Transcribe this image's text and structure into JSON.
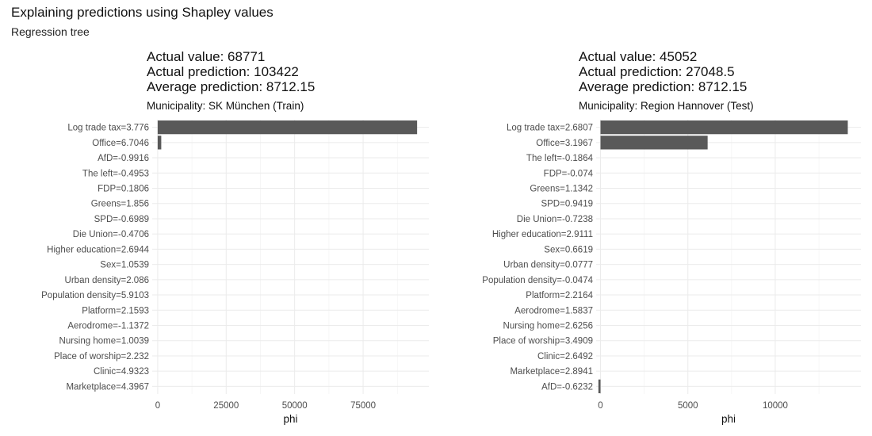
{
  "title": "Explaining predictions using Shapley values",
  "subtitle": "Regression tree",
  "chart_data": [
    {
      "type": "bar",
      "orientation": "horizontal",
      "stats": [
        "Actual value: 68771",
        "Actual prediction: 103422",
        "Average prediction: 8712.15"
      ],
      "facet_label": "Municipality: SK München (Train)",
      "xlabel": "phi",
      "ylabel": "",
      "xlim": [
        -2000,
        99000
      ],
      "xticks": [
        0,
        25000,
        50000,
        75000
      ],
      "xtick_labels": [
        "0",
        "25000",
        "50000",
        "75000"
      ],
      "bar_color": "#595959",
      "grid": true,
      "categories": [
        "Log trade tax=3.776",
        "Office=6.7046",
        "AfD=-0.9916",
        "The left=-0.4953",
        "FDP=0.1806",
        "Greens=1.856",
        "SPD=-0.6989",
        "Die Union=-0.4706",
        "Higher education=2.6944",
        "Sex=1.0539",
        "Urban density=2.086",
        "Population density=5.9103",
        "Platform=2.1593",
        "Aerodrome=-1.1372",
        "Nursing home=1.0039",
        "Place of worship=2.232",
        "Clinic=4.9323",
        "Marketplace=4.3967"
      ],
      "values": [
        94700,
        1300,
        0,
        0,
        0,
        0,
        0,
        0,
        0,
        0,
        0,
        0,
        0,
        0,
        0,
        0,
        0,
        0
      ]
    },
    {
      "type": "bar",
      "orientation": "horizontal",
      "stats": [
        "Actual value: 45052",
        "Actual prediction: 27048.5",
        "Average prediction: 8712.15"
      ],
      "facet_label": "Municipality: Region Hannover (Test)",
      "xlabel": "phi",
      "ylabel": "",
      "xlim": [
        -250,
        14900
      ],
      "xticks": [
        0,
        5000,
        10000
      ],
      "xtick_labels": [
        "0",
        "5000",
        "10000"
      ],
      "bar_color": "#595959",
      "grid": true,
      "categories": [
        "Log trade tax=2.6807",
        "Office=3.1967",
        "The left=-0.1864",
        "FDP=-0.074",
        "Greens=1.1342",
        "SPD=0.9419",
        "Die Union=-0.7238",
        "Higher education=2.9111",
        "Sex=0.6619",
        "Urban density=0.0777",
        "Population density=-0.0474",
        "Platform=2.2164",
        "Aerodrome=1.5837",
        "Nursing home=2.6256",
        "Place of worship=3.4909",
        "Clinic=2.6492",
        "Marketplace=2.8941",
        "AfD=-0.6232"
      ],
      "values": [
        14150,
        6130,
        0,
        0,
        0,
        0,
        0,
        0,
        0,
        0,
        0,
        0,
        0,
        0,
        0,
        0,
        0,
        -120
      ]
    }
  ]
}
